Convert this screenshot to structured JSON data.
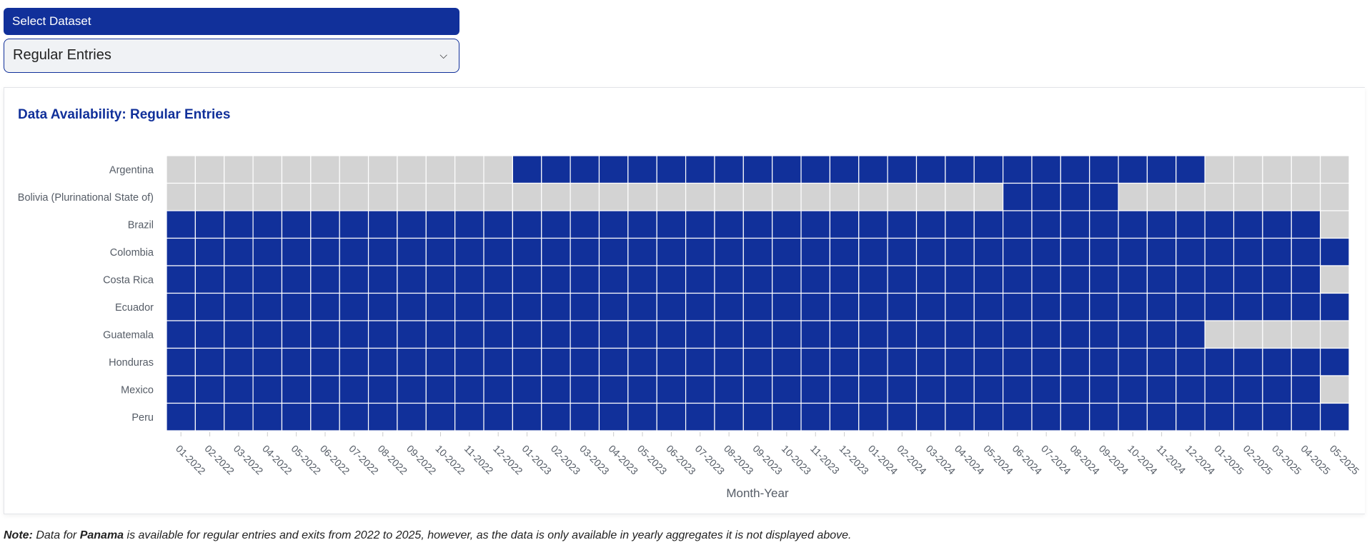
{
  "controls": {
    "select_label": "Select Dataset",
    "selected_value": "Regular Entries"
  },
  "chart_data": {
    "type": "heatmap",
    "title": "Data Availability: Regular Entries",
    "xlabel": "Month-Year",
    "ylabel": "",
    "x": [
      "01-2022",
      "02-2022",
      "03-2022",
      "04-2022",
      "05-2022",
      "06-2022",
      "07-2022",
      "08-2022",
      "09-2022",
      "10-2022",
      "11-2022",
      "12-2022",
      "01-2023",
      "02-2023",
      "03-2023",
      "04-2023",
      "05-2023",
      "06-2023",
      "07-2023",
      "08-2023",
      "09-2023",
      "10-2023",
      "11-2023",
      "12-2023",
      "01-2024",
      "02-2024",
      "03-2024",
      "04-2024",
      "05-2024",
      "06-2024",
      "07-2024",
      "08-2024",
      "09-2024",
      "10-2024",
      "11-2024",
      "12-2024",
      "01-2025",
      "02-2025",
      "03-2025",
      "04-2025",
      "05-2025"
    ],
    "y": [
      "Argentina",
      "Bolivia (Plurinational State of)",
      "Brazil",
      "Colombia",
      "Costa Rica",
      "Ecuador",
      "Guatemala",
      "Honduras",
      "Mexico",
      "Peru"
    ],
    "availability": {
      "Argentina": {
        "available_from": "01-2023",
        "available_to": "12-2024"
      },
      "Bolivia (Plurinational State of)": {
        "available_from": "06-2024",
        "available_to": "09-2024"
      },
      "Brazil": {
        "available_from": "01-2022",
        "available_to": "04-2025"
      },
      "Colombia": {
        "available_from": "01-2022",
        "available_to": "05-2025"
      },
      "Costa Rica": {
        "available_from": "01-2022",
        "available_to": "04-2025"
      },
      "Ecuador": {
        "available_from": "01-2022",
        "available_to": "05-2025"
      },
      "Guatemala": {
        "available_from": "01-2022",
        "available_to": "12-2024"
      },
      "Honduras": {
        "available_from": "01-2022",
        "available_to": "05-2025"
      },
      "Mexico": {
        "available_from": "01-2022",
        "available_to": "04-2025"
      },
      "Peru": {
        "available_from": "01-2022",
        "available_to": "05-2025"
      }
    },
    "colors": {
      "available": "#11309a",
      "unavailable": "#d3d3d3"
    },
    "legend": "none"
  },
  "note": {
    "lead": "Note:",
    "text1": " Data for ",
    "country": "Panama",
    "text2": " is available for regular entries and exits from 2022 to 2025, however, as the data is only available in yearly aggregates it is not displayed above."
  }
}
